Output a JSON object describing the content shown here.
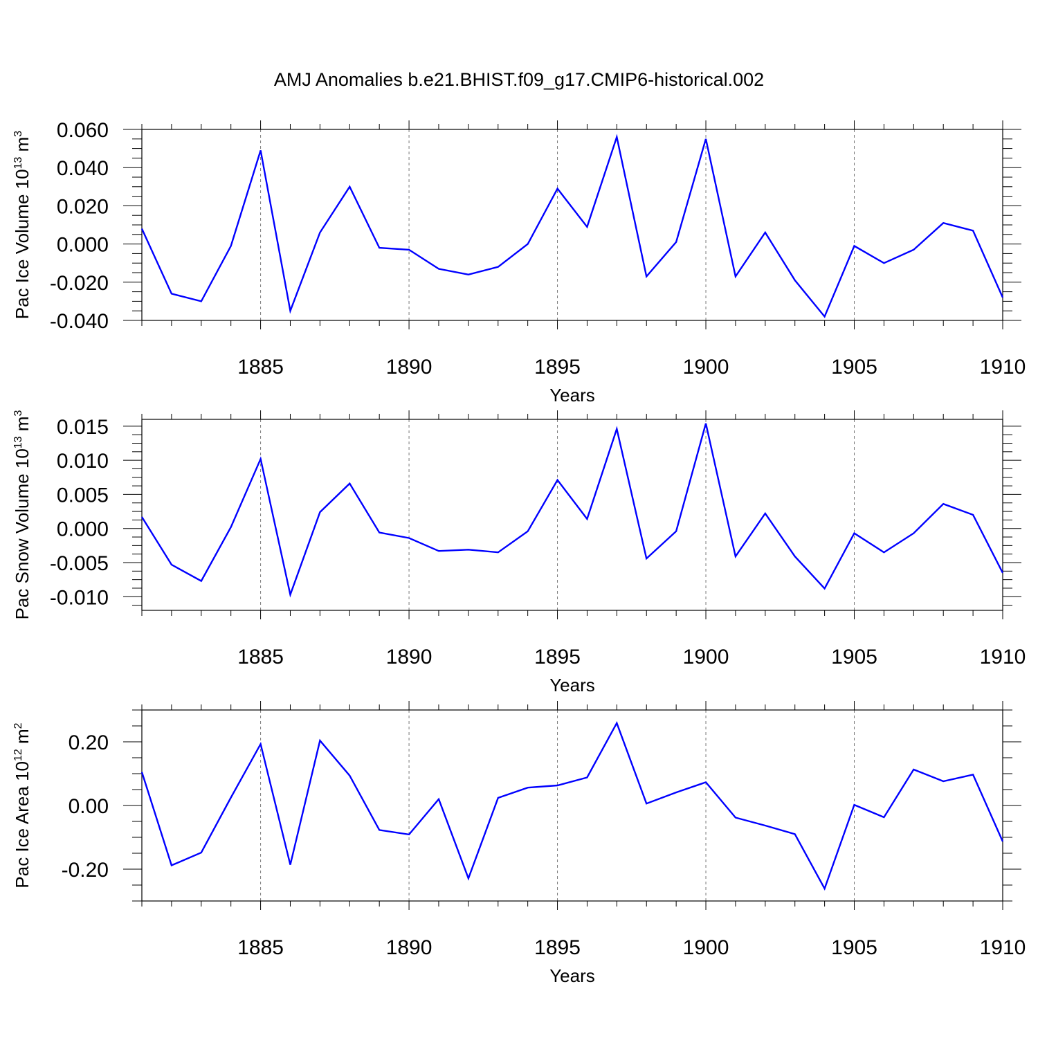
{
  "title": "AMJ Anomalies b.e21.BHIST.f09_g17.CMIP6-historical.002",
  "colors": {
    "line": "#0000ff",
    "frame": "#000000",
    "grid": "#777777"
  },
  "chart_data": [
    {
      "type": "line",
      "ylabel": {
        "main": "Pac Ice Volume 10",
        "exp": "13",
        "tail": " m",
        "tail_exp": "3"
      },
      "xlabel": "Years",
      "xlim": [
        1881,
        1910
      ],
      "ylim": [
        -0.04,
        0.06
      ],
      "yticks": [
        -0.04,
        -0.02,
        0.0,
        0.02,
        0.04,
        0.06
      ],
      "ytick_labels": [
        "-0.040",
        "-0.020",
        "0.000",
        "0.020",
        "0.040",
        "0.060"
      ],
      "xticks": [
        1885,
        1890,
        1895,
        1900,
        1905,
        1910
      ],
      "xtick_labels": [
        "1885",
        "1890",
        "1895",
        "1900",
        "1905",
        "1910"
      ],
      "x": [
        1881,
        1882,
        1883,
        1884,
        1885,
        1886,
        1887,
        1888,
        1889,
        1890,
        1891,
        1892,
        1893,
        1894,
        1895,
        1896,
        1897,
        1898,
        1899,
        1900,
        1901,
        1902,
        1903,
        1904,
        1905,
        1906,
        1907,
        1908,
        1909,
        1910
      ],
      "values": [
        0.008,
        -0.026,
        -0.03,
        -0.001,
        0.049,
        -0.035,
        0.006,
        0.03,
        -0.002,
        -0.003,
        -0.013,
        -0.016,
        -0.012,
        0.0,
        0.029,
        0.009,
        0.056,
        -0.017,
        0.001,
        0.055,
        -0.017,
        0.006,
        -0.019,
        -0.038,
        -0.001,
        -0.01,
        -0.003,
        0.011,
        0.007,
        -0.028
      ]
    },
    {
      "type": "line",
      "ylabel": {
        "main": "Pac Snow Volume 10",
        "exp": "13",
        "tail": " m",
        "tail_exp": "3"
      },
      "xlabel": "Years",
      "xlim": [
        1881,
        1910
      ],
      "ylim": [
        -0.012,
        0.016
      ],
      "yticks": [
        -0.01,
        -0.005,
        0.0,
        0.005,
        0.01,
        0.015
      ],
      "ytick_labels": [
        "-0.010",
        "-0.005",
        "0.000",
        "0.005",
        "0.010",
        "0.015"
      ],
      "xticks": [
        1885,
        1890,
        1895,
        1900,
        1905,
        1910
      ],
      "xtick_labels": [
        "1885",
        "1890",
        "1895",
        "1900",
        "1905",
        "1910"
      ],
      "x": [
        1881,
        1882,
        1883,
        1884,
        1885,
        1886,
        1887,
        1888,
        1889,
        1890,
        1891,
        1892,
        1893,
        1894,
        1895,
        1896,
        1897,
        1898,
        1899,
        1900,
        1901,
        1902,
        1903,
        1904,
        1905,
        1906,
        1907,
        1908,
        1909,
        1910
      ],
      "values": [
        0.0017,
        -0.0053,
        -0.0077,
        0.0002,
        0.0102,
        -0.0097,
        0.0024,
        0.0066,
        -0.0006,
        -0.0014,
        -0.0033,
        -0.0031,
        -0.0035,
        -0.0004,
        0.0071,
        0.0014,
        0.0146,
        -0.0044,
        -0.0004,
        0.0154,
        -0.0041,
        0.0022,
        -0.0041,
        -0.0088,
        -0.0007,
        -0.0035,
        -0.0007,
        0.0036,
        0.002,
        -0.0065
      ]
    },
    {
      "type": "line",
      "ylabel": {
        "main": "Pac Ice Area 10",
        "exp": "12",
        "tail": " m",
        "tail_exp": "2"
      },
      "xlabel": "Years",
      "xlim": [
        1881,
        1910
      ],
      "ylim": [
        -0.3,
        0.3
      ],
      "yticks": [
        -0.2,
        0.0,
        0.2
      ],
      "ytick_labels": [
        "-0.20",
        "0.00",
        "0.20"
      ],
      "xticks": [
        1885,
        1890,
        1895,
        1900,
        1905,
        1910
      ],
      "xtick_labels": [
        "1885",
        "1890",
        "1895",
        "1900",
        "1905",
        "1910"
      ],
      "x": [
        1881,
        1882,
        1883,
        1884,
        1885,
        1886,
        1887,
        1888,
        1889,
        1890,
        1891,
        1892,
        1893,
        1894,
        1895,
        1896,
        1897,
        1898,
        1899,
        1900,
        1901,
        1902,
        1903,
        1904,
        1905,
        1906,
        1907,
        1908,
        1909,
        1910
      ],
      "values": [
        0.105,
        -0.188,
        -0.148,
        0.025,
        0.193,
        -0.186,
        0.204,
        0.094,
        -0.077,
        -0.091,
        0.02,
        -0.229,
        0.024,
        0.056,
        0.063,
        0.088,
        0.259,
        0.006,
        0.041,
        0.073,
        -0.038,
        -0.063,
        -0.09,
        -0.261,
        0.002,
        -0.037,
        0.113,
        0.076,
        0.097,
        -0.113
      ]
    }
  ]
}
